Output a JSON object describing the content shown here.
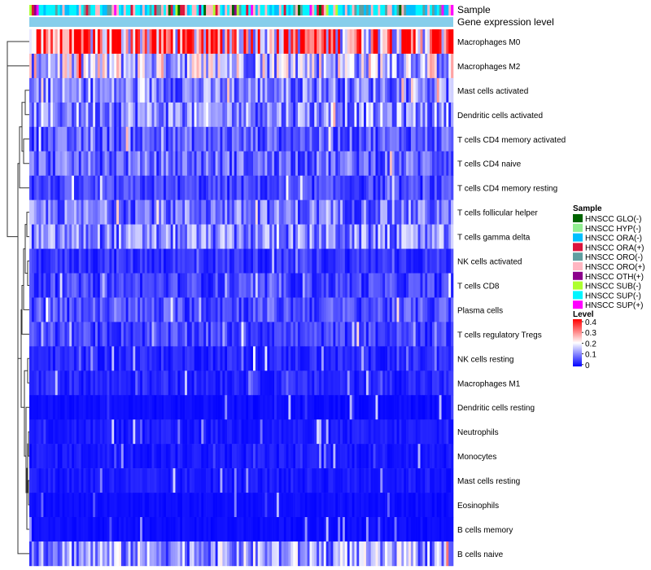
{
  "chart_data": {
    "type": "heatmap",
    "title": "",
    "annotation_labels": [
      "Sample",
      "Gene expression level"
    ],
    "rows": [
      "Macrophages M0",
      "Macrophages M2",
      "Mast cells activated",
      "Dendritic cells activated",
      "T cells CD4 memory activated",
      "T cells CD4 naive",
      "T cells CD4 memory resting",
      "T cells follicular helper",
      "T cells gamma delta",
      "NK cells activated",
      "T cells CD8",
      "Plasma cells",
      "T cells regulatory  Tregs",
      "NK cells resting",
      "Macrophages M1",
      "Dendritic cells resting",
      "Neutrophils",
      "Monocytes",
      "Mast cells resting",
      "Eosinophils",
      "B cells memory",
      "B cells naive"
    ],
    "row_mean_level": [
      0.3,
      0.16,
      0.1,
      0.11,
      0.07,
      0.08,
      0.05,
      0.09,
      0.1,
      0.04,
      0.05,
      0.06,
      0.05,
      0.03,
      0.03,
      0.01,
      0.02,
      0.02,
      0.02,
      0.01,
      0.01,
      0.12
    ],
    "sample_count": 180,
    "legend_sample": {
      "title": "Sample",
      "entries": [
        {
          "label": "HNSCC GLO(-)",
          "color": "#006400"
        },
        {
          "label": "HNSCC HYP(-)",
          "color": "#90ee90"
        },
        {
          "label": "HNSCC ORA(-)",
          "color": "#00bfff"
        },
        {
          "label": "HNSCC ORA(+)",
          "color": "#dc143c"
        },
        {
          "label": "HNSCC ORO(-)",
          "color": "#5f9ea0"
        },
        {
          "label": "HNSCC ORO(+)",
          "color": "#ffb6c1"
        },
        {
          "label": "HNSCC OTH(+)",
          "color": "#8b008b"
        },
        {
          "label": "HNSCC SUB(-)",
          "color": "#adff2f"
        },
        {
          "label": "HNSCC SUP(-)",
          "color": "#00f5ff"
        },
        {
          "label": "HNSCC SUP(+)",
          "color": "#ff00ff"
        }
      ]
    },
    "legend_level": {
      "title": "Level",
      "ticks": [
        "0.4",
        "0.3",
        "0.2",
        "0.1",
        "0"
      ],
      "range": [
        0,
        0.4
      ],
      "colors": [
        "#0000ff",
        "#ffffff",
        "#ff0000"
      ]
    },
    "expression_band_color": "#87ceeb"
  }
}
